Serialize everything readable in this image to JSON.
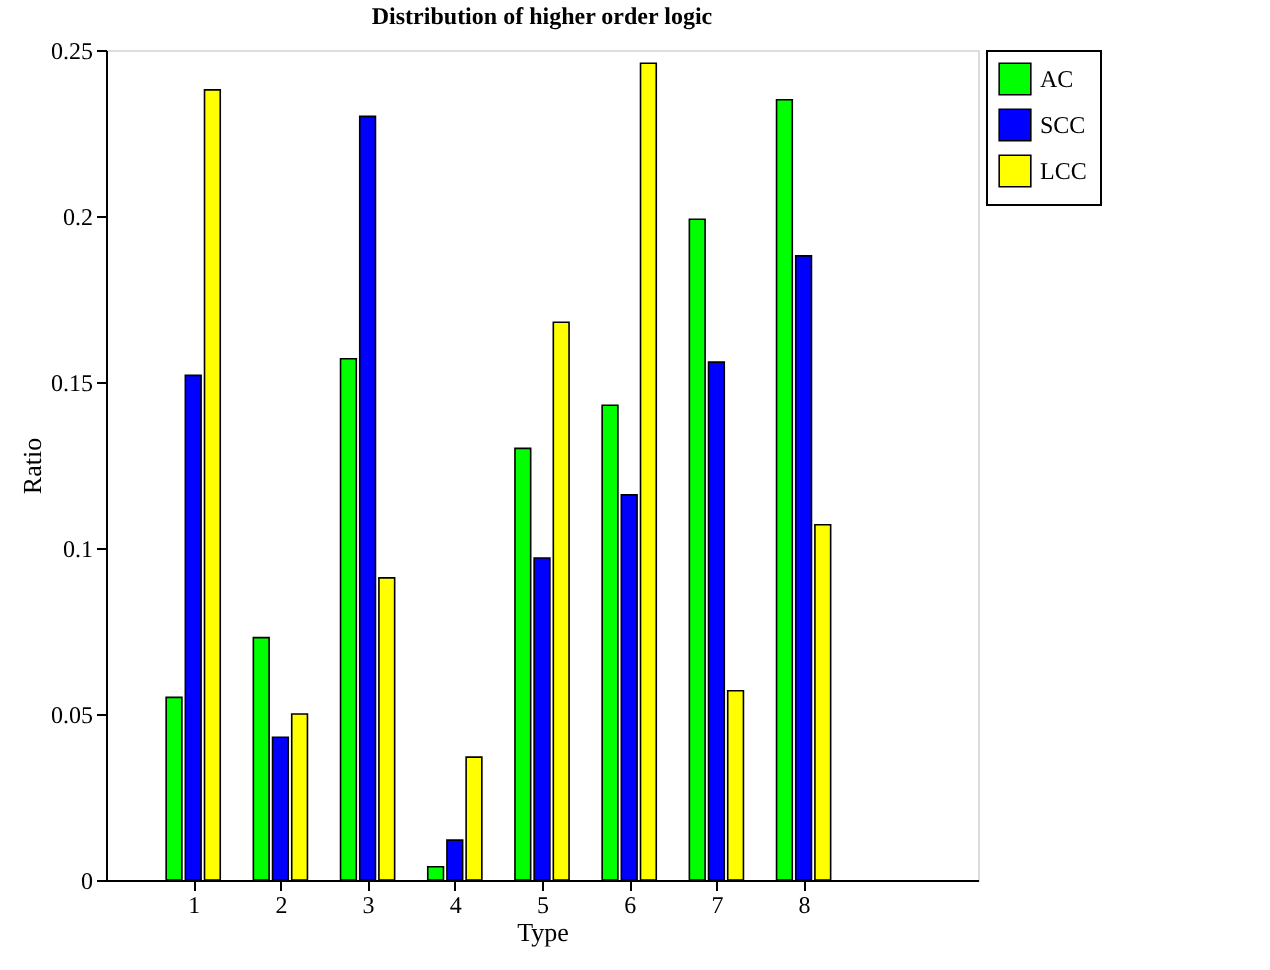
{
  "chart_data": {
    "type": "bar",
    "title": "Distribution of higher order logic",
    "xlabel": "Type",
    "ylabel": "Ratio",
    "x": [
      1,
      2,
      3,
      4,
      5,
      6,
      7,
      8
    ],
    "xlim": [
      0,
      10
    ],
    "xticks": [
      1,
      2,
      3,
      4,
      5,
      6,
      7,
      8
    ],
    "ylim": [
      0,
      0.25
    ],
    "yticks": [
      0,
      0.05,
      0.1,
      0.15,
      0.2,
      0.25
    ],
    "legend": "top right",
    "grid": false,
    "series": [
      {
        "name": "AC",
        "color": "#00ff00",
        "values": [
          0.055,
          0.073,
          0.157,
          0.004,
          0.13,
          0.143,
          0.199,
          0.235
        ]
      },
      {
        "name": "SCC",
        "color": "#0000ff",
        "values": [
          0.152,
          0.043,
          0.23,
          0.012,
          0.097,
          0.116,
          0.156,
          0.188
        ]
      },
      {
        "name": "LCC",
        "color": "#ffff00",
        "values": [
          0.238,
          0.05,
          0.091,
          0.037,
          0.168,
          0.246,
          0.057,
          0.107
        ]
      }
    ]
  }
}
